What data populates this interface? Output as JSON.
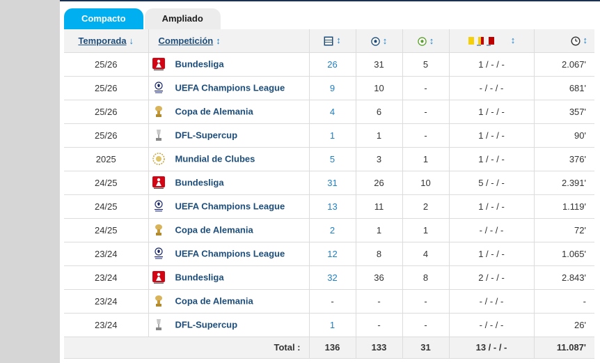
{
  "tabs": {
    "compact": "Compacto",
    "extended": "Ampliado"
  },
  "headers": {
    "season": "Temporada",
    "competition": "Competición",
    "season_sort_icon": "arrow-down",
    "sort_icon": "sort-updown",
    "apps_icon": "lineup-icon",
    "goals_icon": "ball-icon",
    "assists_icon": "assist-icon",
    "cards_icon": "cards-icon",
    "minutes_icon": "clock-icon"
  },
  "sort_arrow": "↕",
  "down_arrow": "↓",
  "rows": [
    {
      "season": "25/26",
      "competition": "Bundesliga",
      "logo": "bundesliga",
      "apps": "26",
      "goals": "31",
      "assists": "5",
      "cards": "1 / - / -",
      "minutes": "2.067'"
    },
    {
      "season": "25/26",
      "competition": "UEFA Champions League",
      "logo": "ucl",
      "apps": "9",
      "goals": "10",
      "assists": "-",
      "cards": "- / - / -",
      "minutes": "681'"
    },
    {
      "season": "25/26",
      "competition": "Copa de Alemania",
      "logo": "pokal",
      "apps": "4",
      "goals": "6",
      "assists": "-",
      "cards": "1 / - / -",
      "minutes": "357'"
    },
    {
      "season": "25/26",
      "competition": "DFL-Supercup",
      "logo": "supercup",
      "apps": "1",
      "goals": "1",
      "assists": "-",
      "cards": "1 / - / -",
      "minutes": "90'"
    },
    {
      "season": "2025",
      "competition": "Mundial de Clubes",
      "logo": "clubwc",
      "apps": "5",
      "goals": "3",
      "assists": "1",
      "cards": "1 / - / -",
      "minutes": "376'"
    },
    {
      "season": "24/25",
      "competition": "Bundesliga",
      "logo": "bundesliga",
      "apps": "31",
      "goals": "26",
      "assists": "10",
      "cards": "5 / - / -",
      "minutes": "2.391'"
    },
    {
      "season": "24/25",
      "competition": "UEFA Champions League",
      "logo": "ucl",
      "apps": "13",
      "goals": "11",
      "assists": "2",
      "cards": "1 / - / -",
      "minutes": "1.119'"
    },
    {
      "season": "24/25",
      "competition": "Copa de Alemania",
      "logo": "pokal",
      "apps": "2",
      "goals": "1",
      "assists": "1",
      "cards": "- / - / -",
      "minutes": "72'"
    },
    {
      "season": "23/24",
      "competition": "UEFA Champions League",
      "logo": "ucl",
      "apps": "12",
      "goals": "8",
      "assists": "4",
      "cards": "1 / - / -",
      "minutes": "1.065'"
    },
    {
      "season": "23/24",
      "competition": "Bundesliga",
      "logo": "bundesliga",
      "apps": "32",
      "goals": "36",
      "assists": "8",
      "cards": "2 / - / -",
      "minutes": "2.843'"
    },
    {
      "season": "23/24",
      "competition": "Copa de Alemania",
      "logo": "pokal",
      "apps": "-",
      "goals": "-",
      "assists": "-",
      "cards": "- / - / -",
      "minutes": "-"
    },
    {
      "season": "23/24",
      "competition": "DFL-Supercup",
      "logo": "supercup",
      "apps": "1",
      "goals": "-",
      "assists": "-",
      "cards": "- / - / -",
      "minutes": "26'"
    }
  ],
  "total": {
    "label": "Total :",
    "apps": "136",
    "goals": "133",
    "assists": "31",
    "cards": "13 / - / -",
    "minutes": "11.087'"
  },
  "colors": {
    "accent": "#00aff0",
    "link": "#1d4d7a",
    "bundesliga_red": "#d20515"
  }
}
